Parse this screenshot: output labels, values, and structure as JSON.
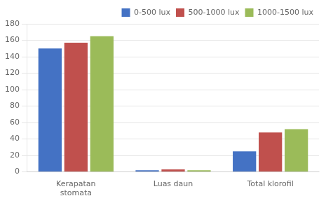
{
  "chart_data": {
    "type": "bar",
    "categories": [
      "Kerapatan\nstomata",
      "Luas daun",
      "Total klorofil"
    ],
    "series": [
      {
        "name": "0-500 lux",
        "color": "#4472C4",
        "values": [
          150,
          2,
          25
        ]
      },
      {
        "name": "500-1000 lux",
        "color": "#C0504D",
        "values": [
          157,
          3,
          48
        ]
      },
      {
        "name": "1000-1500 lux",
        "color": "#9BBB59",
        "values": [
          165,
          2,
          52
        ]
      }
    ],
    "ylim": [
      0,
      180
    ],
    "yticks": [
      0,
      20,
      40,
      60,
      80,
      100,
      120,
      140,
      160,
      180
    ],
    "grid": true,
    "legend": "upper right"
  }
}
